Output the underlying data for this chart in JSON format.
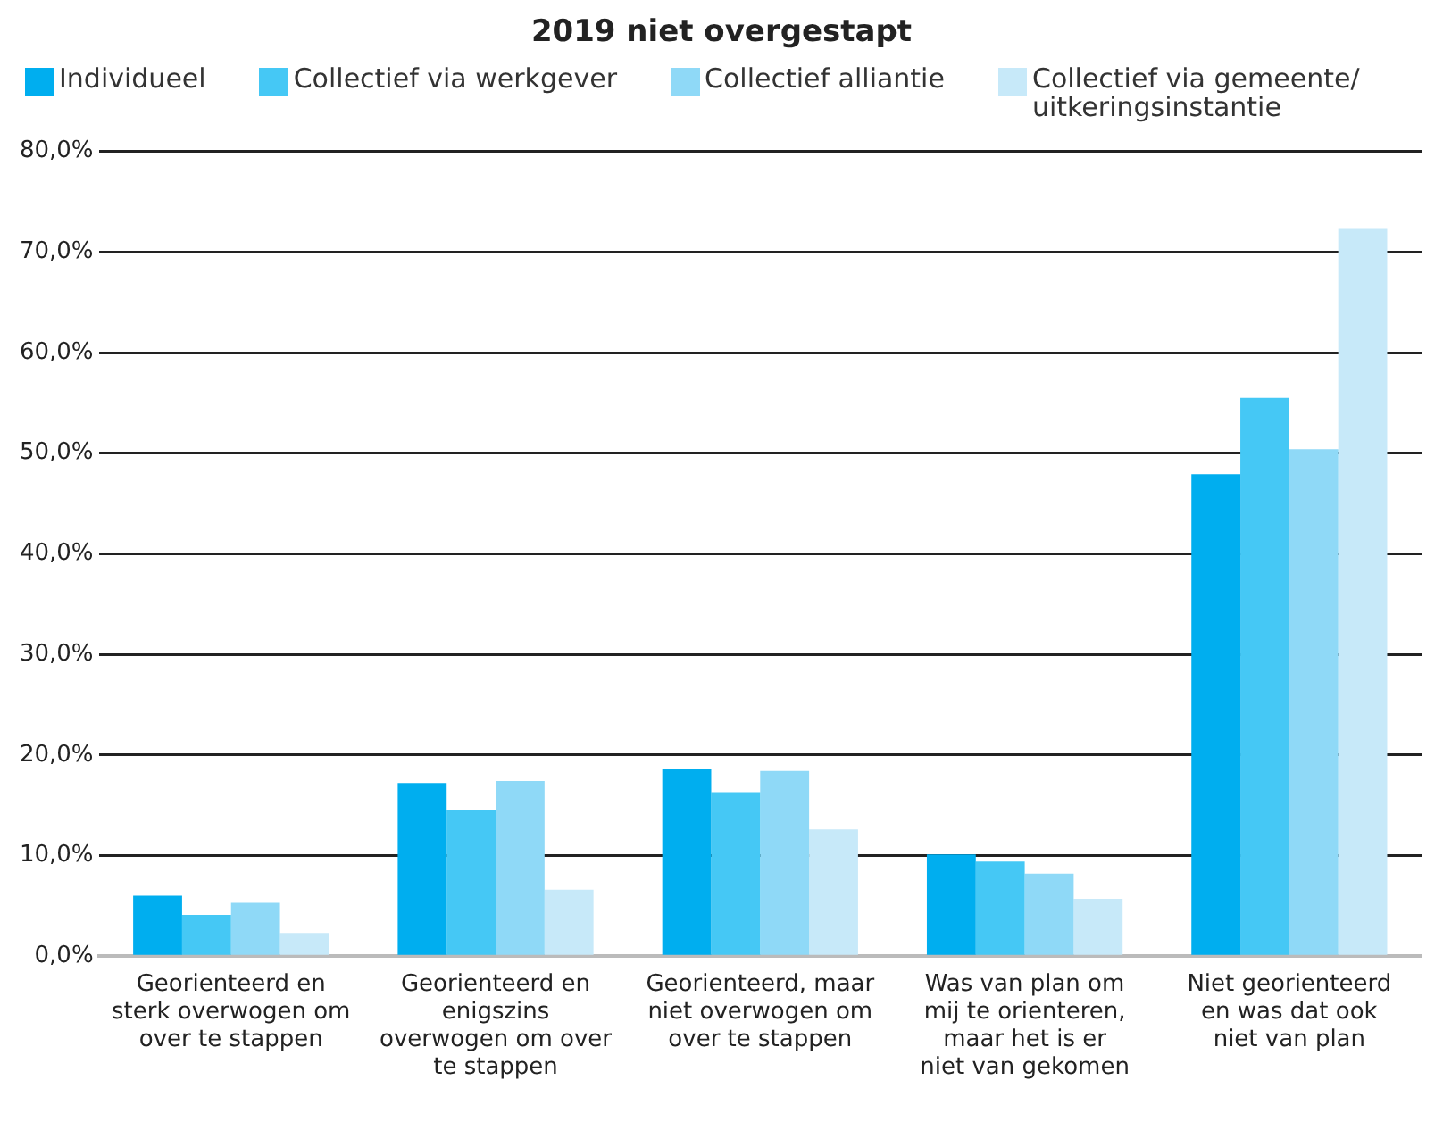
{
  "chart_data": {
    "type": "bar",
    "title": "2019 niet overgestapt",
    "categories": [
      "Georienteerd en sterk overwogen om over te stappen",
      "Georienteerd en enigszins overwogen om over te stappen",
      "Georienteerd, maar niet overwogen om over te stappen",
      "Was van plan om mij te orienteren, maar het is er niet van gekomen",
      "Niet georienteerd en was dat ook niet van plan"
    ],
    "series": [
      {
        "name": "Individueel",
        "color": "#00aeef",
        "values": [
          6.0,
          17.2,
          18.6,
          10.1,
          47.9
        ]
      },
      {
        "name": "Collectief via werkgever",
        "color": "#45c8f5",
        "values": [
          4.1,
          14.5,
          16.3,
          9.4,
          55.5
        ]
      },
      {
        "name": "Collectief alliantie",
        "color": "#8fd9f7",
        "values": [
          5.3,
          17.4,
          18.4,
          8.2,
          50.4
        ]
      },
      {
        "name": "Collectief via gemeente/uitkeringsinstantie",
        "color": "#c7e9f9",
        "values": [
          2.3,
          6.6,
          12.6,
          5.7,
          72.3
        ]
      }
    ],
    "ylim": [
      0,
      80
    ],
    "yticks": [
      {
        "value": 0,
        "label": "0,0%"
      },
      {
        "value": 10,
        "label": "10,0%"
      },
      {
        "value": 20,
        "label": "20,0%"
      },
      {
        "value": 30,
        "label": "30,0%"
      },
      {
        "value": 40,
        "label": "40,0%"
      },
      {
        "value": 50,
        "label": "50,0%"
      },
      {
        "value": 60,
        "label": "60,0%"
      },
      {
        "value": 70,
        "label": "70,0%"
      },
      {
        "value": 80,
        "label": "80,0%"
      }
    ],
    "grid": "y",
    "legend": "top"
  }
}
